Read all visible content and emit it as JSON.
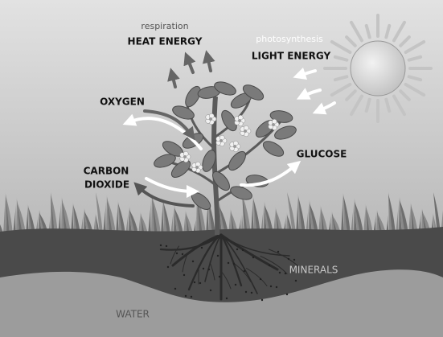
{
  "header": {
    "respiration": "respiration",
    "heat_energy": "HEAT ENERGY",
    "photosynthesis": "photosynthesis",
    "light_energy": "LIGHT ENERGY"
  },
  "labels": {
    "oxygen": "OXYGEN",
    "glucose": "GLUCOSE",
    "carbon_dioxide": [
      "CARBON",
      "DIOXIDE"
    ],
    "minerals": "MINERALS",
    "water": "WATER"
  }
}
